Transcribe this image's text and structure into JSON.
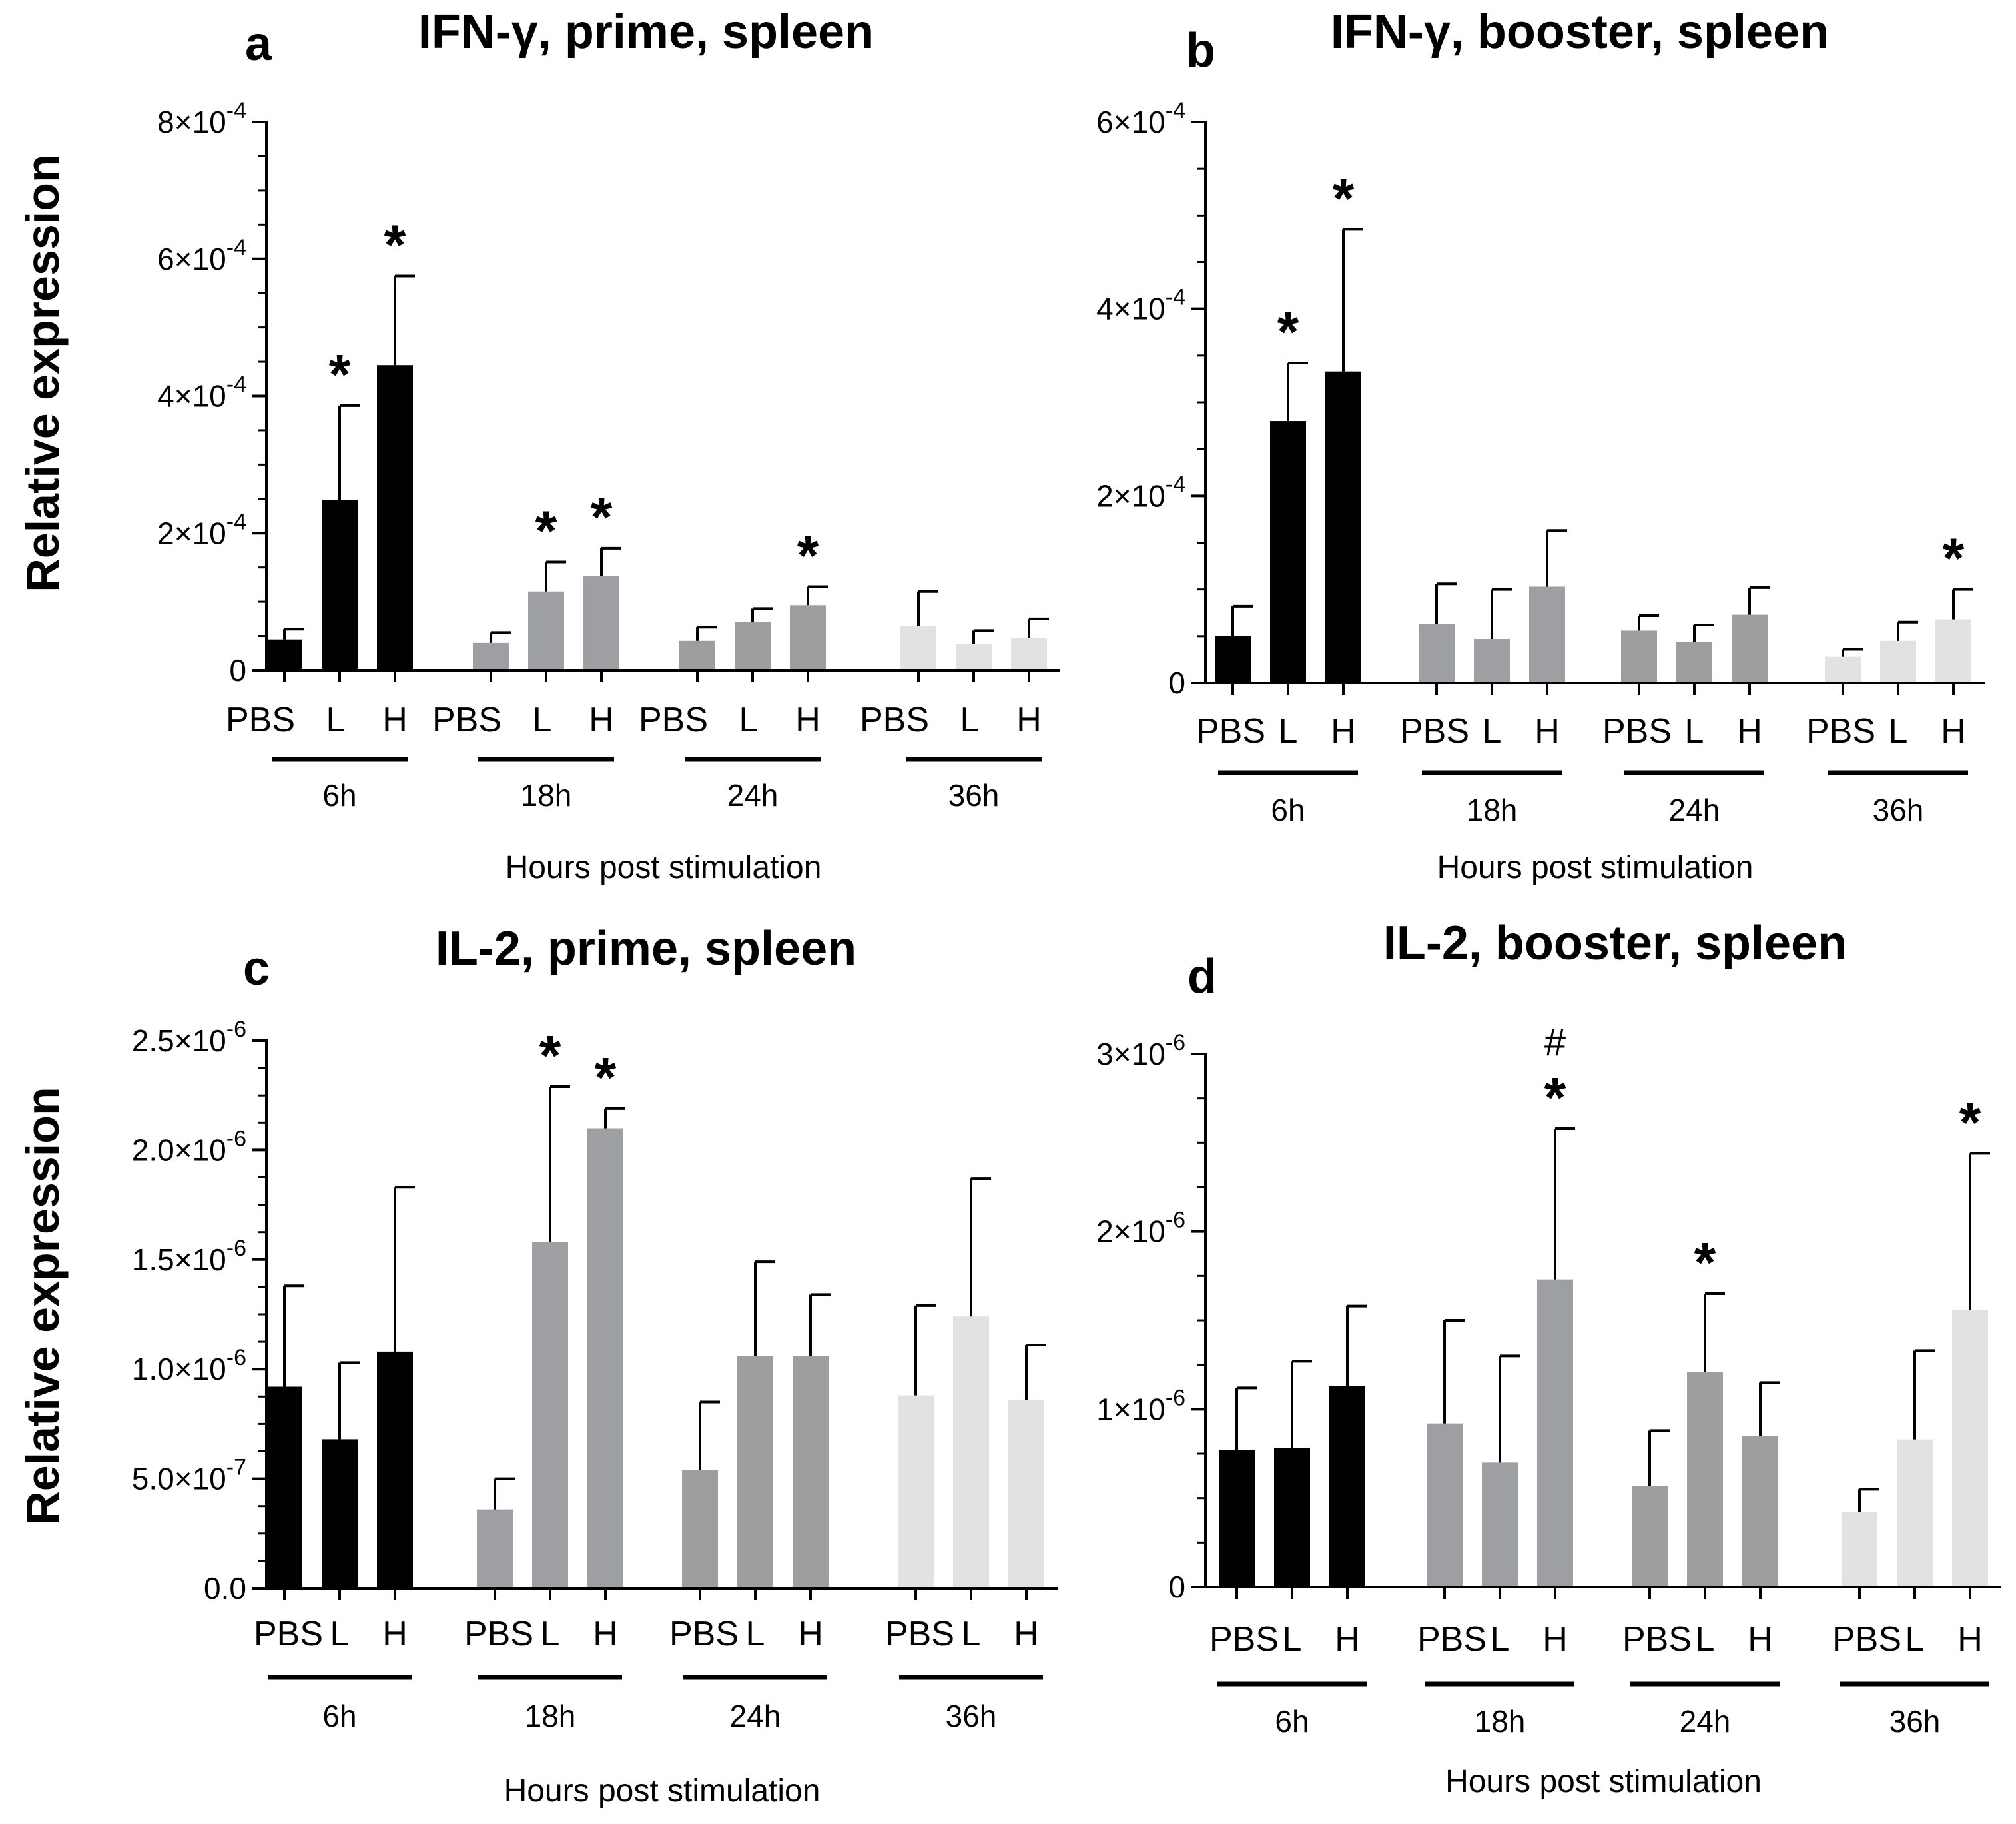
{
  "colors": {
    "6h": "#000000",
    "18h": "#9e9fa2",
    "24h": "#9e9e9e",
    "36h": "#e2e2e2"
  },
  "chart_data": [
    {
      "panel": "a",
      "type": "bar",
      "title": "IFN-γ, prime, spleen",
      "ylabel": "Relative expression",
      "xlabel": "Hours post stimulation",
      "ylim": [
        0,
        0.0008
      ],
      "yticks": [
        0,
        0.0002,
        0.0004,
        0.0006,
        0.0008
      ],
      "ytick_labels": [
        {
          "m": "0",
          "e": ""
        },
        {
          "m": "2×10",
          "e": "-4"
        },
        {
          "m": "4×10",
          "e": "-4"
        },
        {
          "m": "6×10",
          "e": "-4"
        },
        {
          "m": "8×10",
          "e": "-4"
        }
      ],
      "categories": [
        "PBS",
        "L",
        "H"
      ],
      "groups": [
        {
          "label": "6h",
          "values": [
            4.5e-05,
            0.000248,
            0.000445
          ],
          "errors": [
            1.5e-05,
            0.000138,
            0.00013
          ],
          "stars": [
            "",
            "*",
            "*"
          ],
          "hash": [
            "",
            "",
            ""
          ]
        },
        {
          "label": "18h",
          "values": [
            4e-05,
            0.000115,
            0.000138
          ],
          "errors": [
            1.5e-05,
            4.3e-05,
            4e-05
          ],
          "stars": [
            "",
            "*",
            "*"
          ],
          "hash": [
            "",
            "",
            ""
          ]
        },
        {
          "label": "24h",
          "values": [
            4.3e-05,
            7e-05,
            9.5e-05
          ],
          "errors": [
            2e-05,
            2e-05,
            2.7e-05
          ],
          "stars": [
            "",
            "",
            "*"
          ],
          "hash": [
            "",
            "",
            ""
          ]
        },
        {
          "label": "36h",
          "values": [
            6.5e-05,
            3.8e-05,
            4.7e-05
          ],
          "errors": [
            5e-05,
            2e-05,
            2.8e-05
          ],
          "stars": [
            "",
            "",
            ""
          ],
          "hash": [
            "",
            "",
            ""
          ]
        }
      ]
    },
    {
      "panel": "b",
      "type": "bar",
      "title": "IFN-γ, booster, spleen",
      "ylabel": "",
      "xlabel": "Hours post stimulation",
      "ylim": [
        0,
        0.0006
      ],
      "yticks": [
        0,
        0.0002,
        0.0004,
        0.0006
      ],
      "ytick_labels": [
        {
          "m": "0",
          "e": ""
        },
        {
          "m": "2×10",
          "e": "-4"
        },
        {
          "m": "4×10",
          "e": "-4"
        },
        {
          "m": "6×10",
          "e": "-4"
        }
      ],
      "categories": [
        "PBS",
        "L",
        "H"
      ],
      "groups": [
        {
          "label": "6h",
          "values": [
            5e-05,
            0.00028,
            0.000333
          ],
          "errors": [
            3.2e-05,
            6.2e-05,
            0.000152
          ],
          "stars": [
            "",
            "*",
            "*"
          ],
          "hash": [
            "",
            "",
            ""
          ]
        },
        {
          "label": "18h",
          "values": [
            6.3e-05,
            4.7e-05,
            0.000103
          ],
          "errors": [
            4.3e-05,
            5.3e-05,
            6e-05
          ],
          "stars": [
            "",
            "",
            ""
          ],
          "hash": [
            "",
            "",
            ""
          ]
        },
        {
          "label": "24h",
          "values": [
            5.6e-05,
            4.4e-05,
            7.3e-05
          ],
          "errors": [
            1.6e-05,
            1.8e-05,
            2.9e-05
          ],
          "stars": [
            "",
            "",
            ""
          ],
          "hash": [
            "",
            "",
            ""
          ]
        },
        {
          "label": "36h",
          "values": [
            2.8e-05,
            4.5e-05,
            6.8e-05
          ],
          "errors": [
            8e-06,
            2e-05,
            3.2e-05
          ],
          "stars": [
            "",
            "",
            "*"
          ],
          "hash": [
            "",
            "",
            ""
          ]
        }
      ]
    },
    {
      "panel": "c",
      "type": "bar",
      "title": "IL-2, prime, spleen",
      "ylabel": "Relative expression",
      "xlabel": "Hours post stimulation",
      "ylim": [
        0,
        2.5e-06
      ],
      "yticks": [
        0,
        5e-07,
        1e-06,
        1.5e-06,
        2e-06,
        2.5e-06
      ],
      "ytick_labels": [
        {
          "m": "0.0",
          "e": ""
        },
        {
          "m": "5.0×10",
          "e": "-7"
        },
        {
          "m": "1.0×10",
          "e": "-6"
        },
        {
          "m": "1.5×10",
          "e": "-6"
        },
        {
          "m": "2.0×10",
          "e": "-6"
        },
        {
          "m": "2.5×10",
          "e": "-6"
        }
      ],
      "categories": [
        "PBS",
        "L",
        "H"
      ],
      "groups": [
        {
          "label": "6h",
          "values": [
            9.2e-07,
            6.8e-07,
            1.08e-06
          ],
          "errors": [
            4.6e-07,
            3.5e-07,
            7.5e-07
          ],
          "stars": [
            "",
            "",
            ""
          ],
          "hash": [
            "",
            "",
            ""
          ]
        },
        {
          "label": "18h",
          "values": [
            3.6e-07,
            1.58e-06,
            2.1e-06
          ],
          "errors": [
            1.4e-07,
            7.1e-07,
            9e-08
          ],
          "stars": [
            "",
            "*",
            "*"
          ],
          "hash": [
            "",
            "",
            ""
          ]
        },
        {
          "label": "24h",
          "values": [
            5.4e-07,
            1.06e-06,
            1.06e-06
          ],
          "errors": [
            3.1e-07,
            4.3e-07,
            2.8e-07
          ],
          "stars": [
            "",
            "",
            ""
          ],
          "hash": [
            "",
            "",
            ""
          ]
        },
        {
          "label": "36h",
          "values": [
            8.8e-07,
            1.24e-06,
            8.6e-07
          ],
          "errors": [
            4.1e-07,
            6.3e-07,
            2.5e-07
          ],
          "stars": [
            "",
            "",
            ""
          ],
          "hash": [
            "",
            "",
            ""
          ]
        }
      ]
    },
    {
      "panel": "d",
      "type": "bar",
      "title": "IL-2, booster, spleen",
      "ylabel": "",
      "xlabel": "Hours post stimulation",
      "ylim": [
        0,
        3e-06
      ],
      "yticks": [
        0,
        1e-06,
        2e-06,
        3e-06
      ],
      "ytick_labels": [
        {
          "m": "0",
          "e": ""
        },
        {
          "m": "1×10",
          "e": "-6"
        },
        {
          "m": "2×10",
          "e": "-6"
        },
        {
          "m": "3×10",
          "e": "-6"
        }
      ],
      "categories": [
        "PBS",
        "L",
        "H"
      ],
      "groups": [
        {
          "label": "6h",
          "values": [
            7.7e-07,
            7.8e-07,
            1.13e-06
          ],
          "errors": [
            3.5e-07,
            4.9e-07,
            4.5e-07
          ],
          "stars": [
            "",
            "",
            ""
          ],
          "hash": [
            "",
            "",
            ""
          ]
        },
        {
          "label": "18h",
          "values": [
            9.2e-07,
            7e-07,
            1.73e-06
          ],
          "errors": [
            5.8e-07,
            6e-07,
            8.5e-07
          ],
          "stars": [
            "",
            "",
            "*"
          ],
          "hash": [
            "",
            "",
            "#"
          ]
        },
        {
          "label": "24h",
          "values": [
            5.7e-07,
            1.21e-06,
            8.5e-07
          ],
          "errors": [
            3.1e-07,
            4.4e-07,
            3e-07
          ],
          "stars": [
            "",
            "*",
            ""
          ],
          "hash": [
            "",
            "",
            ""
          ]
        },
        {
          "label": "36h",
          "values": [
            4.2e-07,
            8.3e-07,
            1.56e-06
          ],
          "errors": [
            1.3e-07,
            5e-07,
            8.8e-07
          ],
          "stars": [
            "",
            "",
            "*"
          ],
          "hash": [
            "",
            "",
            ""
          ]
        }
      ]
    }
  ]
}
